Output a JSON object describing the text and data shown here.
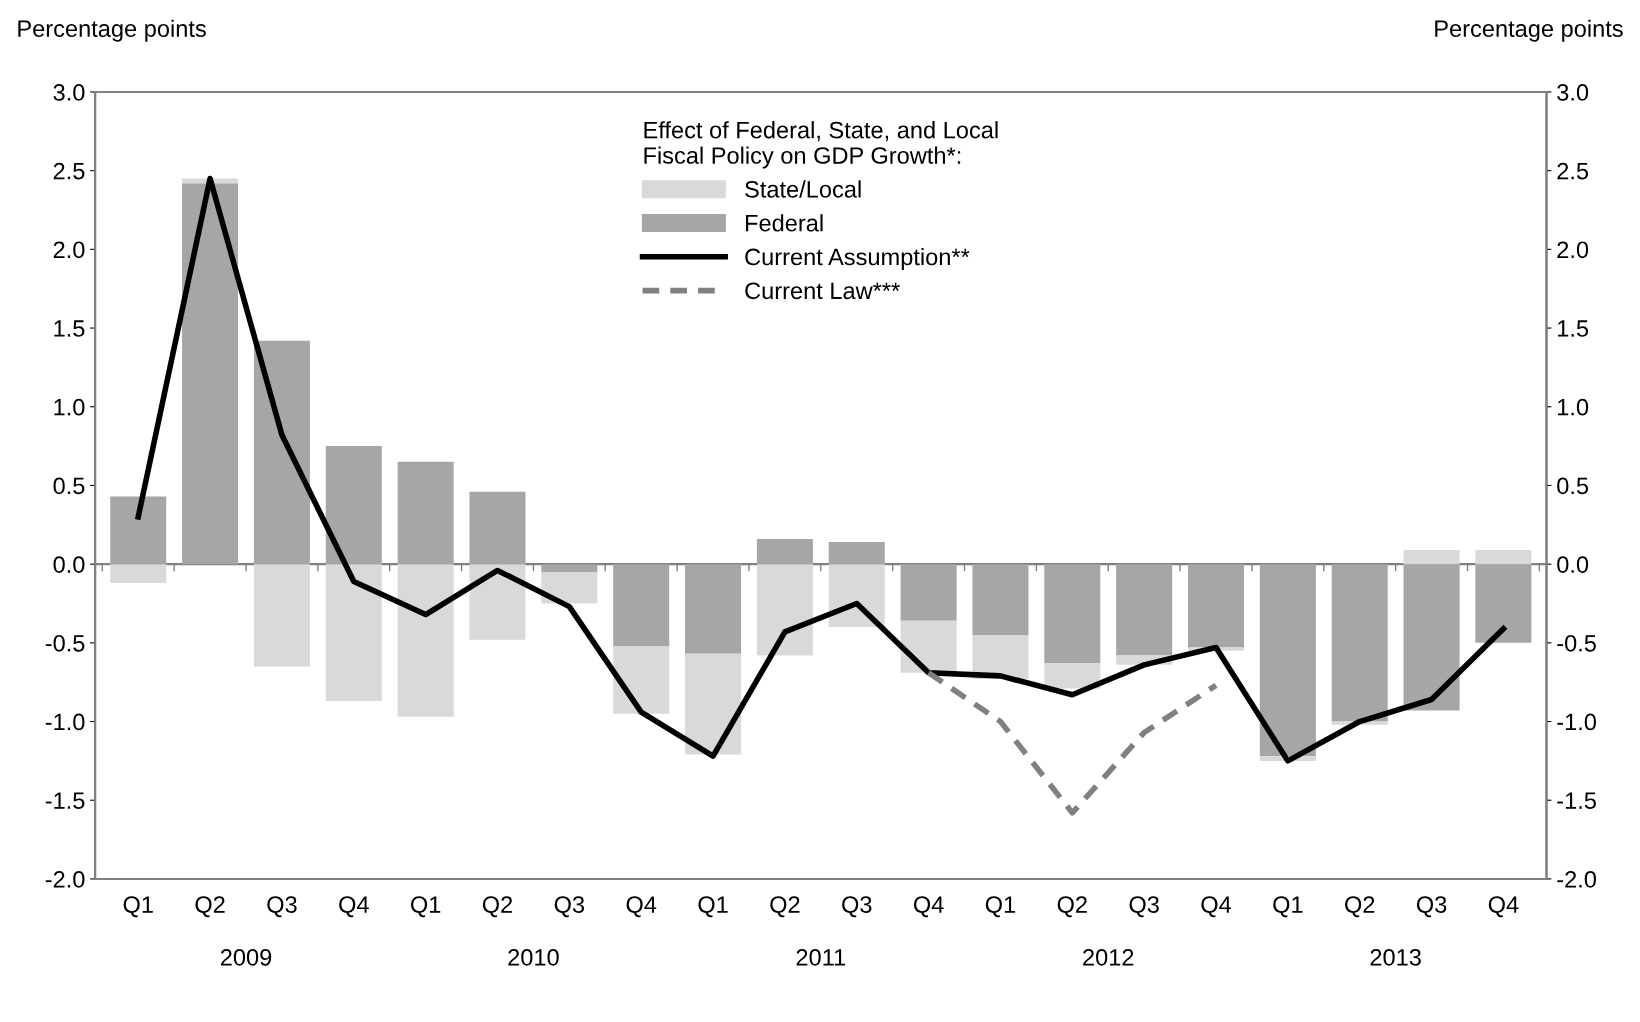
{
  "chart_data": {
    "type": "bar",
    "stacked": true,
    "ylabel": "Percentage points",
    "y2label": "Percentage points",
    "legend_title": "Effect of Federal, State, and Local\nFiscal Policy on GDP Growth*:",
    "legend": "top",
    "categories": [
      "Q1",
      "Q2",
      "Q3",
      "Q4",
      "Q1",
      "Q2",
      "Q3",
      "Q4",
      "Q1",
      "Q2",
      "Q3",
      "Q4",
      "Q1",
      "Q2",
      "Q3",
      "Q4",
      "Q1",
      "Q2",
      "Q3",
      "Q4"
    ],
    "annotations": [
      "2009",
      "2010",
      "2011",
      "2012",
      "2013"
    ],
    "ylim": [
      -2.0,
      3.0
    ],
    "yticks": [
      {
        "value": -2.0,
        "label": "-2.0"
      },
      {
        "value": -1.5,
        "label": "-1.5"
      },
      {
        "value": -1.0,
        "label": "-1.0"
      },
      {
        "value": -0.5,
        "label": "-0.5"
      },
      {
        "value": 0.0,
        "label": "0.0"
      },
      {
        "value": 0.5,
        "label": "0.5"
      },
      {
        "value": 1.0,
        "label": "1.0"
      },
      {
        "value": 1.5,
        "label": "1.5"
      },
      {
        "value": 2.0,
        "label": "2.0"
      },
      {
        "value": 2.5,
        "label": "2.5"
      },
      {
        "value": 3.0,
        "label": "3.0"
      }
    ],
    "y2lim": [
      -2.0,
      3.0
    ],
    "y2ticks": [
      {
        "value": -2.0,
        "label": "-2.0"
      },
      {
        "value": -1.5,
        "label": "-1.5"
      },
      {
        "value": -1.0,
        "label": "-1.0"
      },
      {
        "value": -0.5,
        "label": "-0.5"
      },
      {
        "value": 0.0,
        "label": "0.0"
      },
      {
        "value": 0.5,
        "label": "0.5"
      },
      {
        "value": 1.0,
        "label": "1.0"
      },
      {
        "value": 1.5,
        "label": "1.5"
      },
      {
        "value": 2.0,
        "label": "2.0"
      },
      {
        "value": 2.5,
        "label": "2.5"
      },
      {
        "value": 3.0,
        "label": "3.0"
      }
    ],
    "series": [
      {
        "name": "Federal",
        "color": "#a6a6a6",
        "values": [
          0.43,
          2.42,
          1.42,
          0.75,
          0.65,
          0.46,
          -0.05,
          -0.52,
          -0.57,
          0.16,
          0.14,
          -0.36,
          -0.45,
          -0.63,
          -0.58,
          -0.53,
          -1.22,
          -1.0,
          -0.93,
          -0.5
        ]
      },
      {
        "name": "State/Local",
        "color": "#d9d9d9",
        "values": [
          -0.12,
          0.03,
          -0.65,
          -0.87,
          -0.97,
          -0.48,
          -0.2,
          -0.43,
          -0.64,
          -0.58,
          -0.4,
          -0.33,
          -0.28,
          -0.16,
          -0.06,
          -0.02,
          -0.03,
          -0.02,
          0.09,
          0.09
        ]
      },
      {
        "name": "Current Assumption**",
        "type": "line",
        "color": "#000000",
        "line_style": "solid",
        "values": [
          0.3,
          2.45,
          0.82,
          -0.11,
          -0.32,
          -0.04,
          -0.27,
          -0.94,
          -1.22,
          -0.43,
          -0.25,
          -0.69,
          -0.71,
          -0.83,
          -0.64,
          -0.53,
          -1.25,
          -1.0,
          -0.86,
          -0.41
        ]
      },
      {
        "name": "Current Law***",
        "type": "line",
        "color": "#808080",
        "line_style": "dashed",
        "values": [
          null,
          null,
          null,
          null,
          null,
          null,
          null,
          null,
          null,
          null,
          null,
          -0.69,
          -1.0,
          -1.58,
          -1.07,
          -0.77,
          null,
          null,
          null,
          null
        ]
      }
    ]
  }
}
